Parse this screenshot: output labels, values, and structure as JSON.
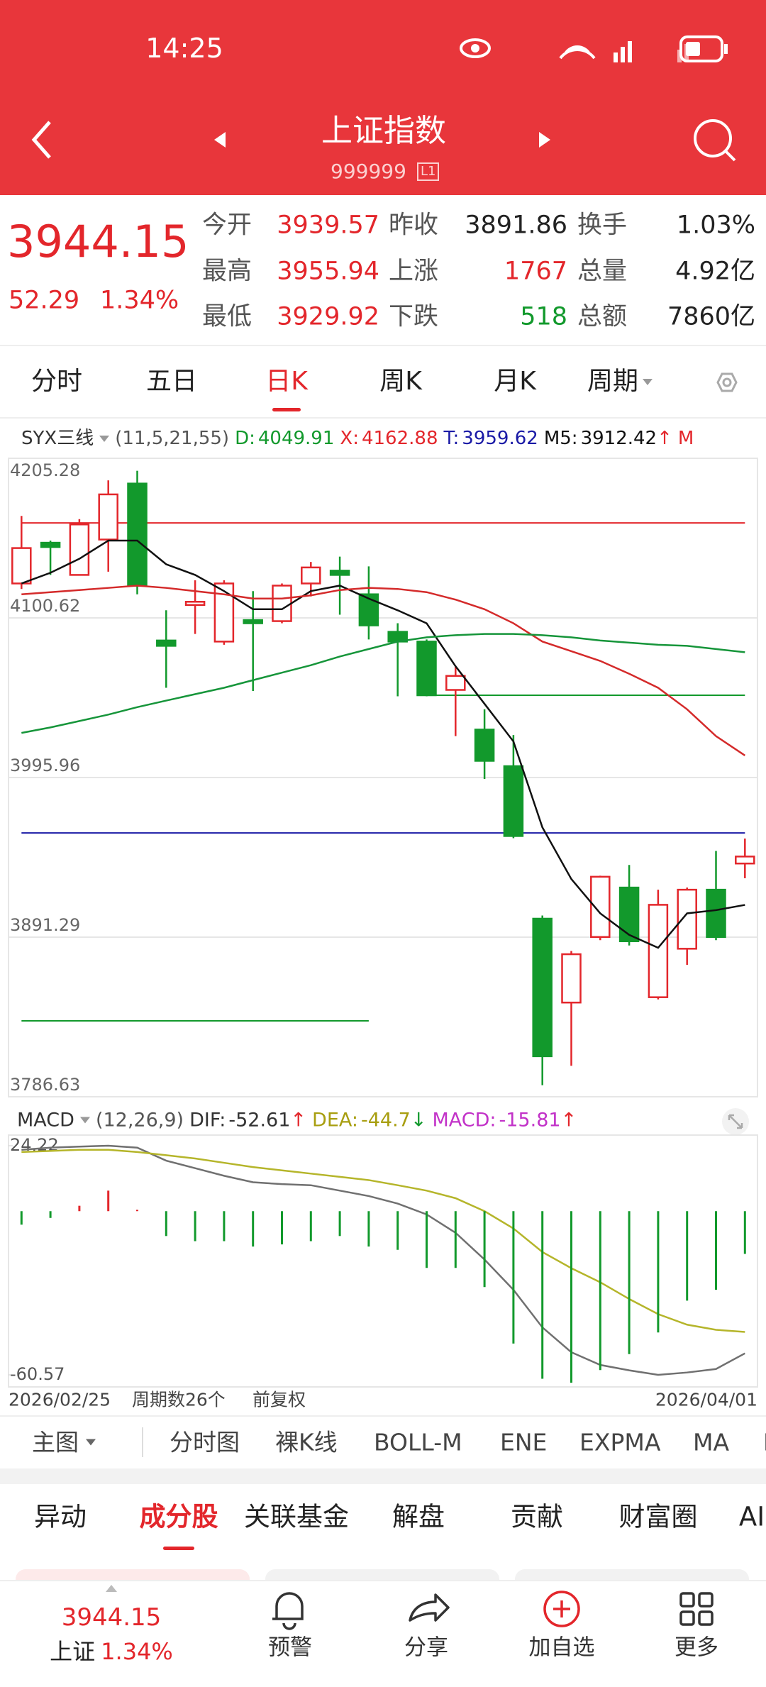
{
  "status_bar": {
    "time": "14:25"
  },
  "header": {
    "title": "上证指数",
    "code": "999999",
    "badge": "L1"
  },
  "colors": {
    "up": "#e3262b",
    "down": "#12992c",
    "flat": "#222222"
  },
  "quote": {
    "price": "3944.15",
    "change": "52.29",
    "change_pct": "1.34%",
    "tone": "up",
    "stats": [
      [
        {
          "label": "今开",
          "value": "3939.57",
          "tone": "up"
        },
        {
          "label": "昨收",
          "value": "3891.86",
          "tone": "flat"
        },
        {
          "label": "换手",
          "value": "1.03%",
          "tone": "flat"
        }
      ],
      [
        {
          "label": "最高",
          "value": "3955.94",
          "tone": "up"
        },
        {
          "label": "上涨",
          "value": "1767",
          "tone": "up"
        },
        {
          "label": "总量",
          "value": "4.92亿",
          "tone": "flat"
        }
      ],
      [
        {
          "label": "最低",
          "value": "3929.92",
          "tone": "up"
        },
        {
          "label": "下跌",
          "value": "518",
          "tone": "down"
        },
        {
          "label": "总额",
          "value": "7860亿",
          "tone": "flat"
        }
      ]
    ]
  },
  "period_tabs": {
    "items": [
      "分时",
      "五日",
      "日K",
      "周K",
      "月K",
      "周期"
    ],
    "active": 2
  },
  "chart_data": [
    {
      "type": "candlestick",
      "categories": [
        "2026/02/25",
        null,
        null,
        null,
        null,
        null,
        null,
        null,
        null,
        null,
        null,
        null,
        null,
        null,
        null,
        null,
        null,
        null,
        null,
        null,
        null,
        null,
        null,
        null,
        null,
        "2026/04/01"
      ],
      "open": [
        4123.2,
        4149.9,
        4128.8,
        4152.0,
        4188.7,
        4085.8,
        4109.1,
        4085.1,
        4099.2,
        4098.5,
        4123.2,
        4131.6,
        4116.1,
        4091.5,
        4085.1,
        4053.4,
        4027.4,
        4003.4,
        3903.4,
        3848.4,
        3891.4,
        3923.8,
        3851.9,
        3883.7,
        3922.4,
        3939.57
      ],
      "high": [
        4167.5,
        4151.3,
        4165.4,
        4190.8,
        4197.1,
        4105.6,
        4125.3,
        4125.3,
        4118.2,
        4123.2,
        4137.3,
        4140.8,
        4134.4,
        4097.1,
        4086.5,
        4068.9,
        4040.7,
        4023.8,
        3905.5,
        3882.2,
        3931.6,
        3938.6,
        3922.4,
        3923.8,
        3947.8,
        3955.94
      ],
      "low": [
        4119.6,
        4128.8,
        4128.8,
        4130.9,
        4116.1,
        4054.8,
        4090.1,
        4083.0,
        4052.7,
        4097.1,
        4114.7,
        4102.7,
        4086.5,
        4049.2,
        4049.2,
        4023.1,
        3995.0,
        3956.2,
        3794.2,
        3806.9,
        3889.3,
        3885.8,
        3850.5,
        3873.1,
        3889.3,
        3929.92
      ],
      "close": [
        4146.4,
        4147.1,
        4161.9,
        4181.6,
        4121.7,
        4082.3,
        4111.2,
        4123.2,
        4097.1,
        4121.8,
        4133.7,
        4128.8,
        4095.7,
        4085.1,
        4049.9,
        4062.6,
        4006.9,
        3957.6,
        3813.2,
        3880.1,
        3930.9,
        3888.6,
        3912.5,
        3922.4,
        3891.4,
        3944.15
      ],
      "ylim": [
        3786.63,
        4205.28
      ],
      "yticks": [
        4205.28,
        4100.62,
        3995.96,
        3891.29,
        3786.63
      ],
      "grid": true,
      "up_color": "#e3262b",
      "down_color": "#12992c",
      "indicator": {
        "name": "SYX三线",
        "params": "(11,5,21,55)",
        "items": [
          {
            "label": "D:",
            "value": 4049.91,
            "color": "#12992c",
            "from": 14
          },
          {
            "label": "X:",
            "value": 4162.88,
            "color": "#e3262b",
            "from": 0
          },
          {
            "label": "T:",
            "value": 3959.62,
            "color": "#1a1aa6",
            "from": 0
          }
        ],
        "tail": "M",
        "tail_color": "#e3262b"
      },
      "lines": [
        {
          "name": "M5:",
          "color": "#111111",
          "trend": "↑",
          "trend_color": "#e3262b",
          "values": [
            4123.2,
            4130.2,
            4139.4,
            4151.3,
            4151.3,
            4135.8,
            4128.8,
            4118.2,
            4106.3,
            4106.3,
            4118.2,
            4121.8,
            4113.3,
            4105.6,
            4097.1,
            4068.9,
            4044.3,
            4019.6,
            3963.3,
            3929.4,
            3906.9,
            3892.8,
            3884.3,
            3906.9,
            3909.0,
            3912.42
          ]
        },
        {
          "color": "#d42a2a",
          "values": [
            4116.1,
            4117.5,
            4118.9,
            4120.3,
            4121.8,
            4120.3,
            4118.2,
            4116.1,
            4113.3,
            4113.3,
            4115.4,
            4118.9,
            4120.3,
            4119.6,
            4117.5,
            4112.6,
            4106.3,
            4097.1,
            4085.1,
            4078.8,
            4072.4,
            4064.0,
            4054.8,
            4040.7,
            4023.1,
            4010.4
          ]
        },
        {
          "color": "#16953a",
          "values": [
            4025.2,
            4028.8,
            4033.0,
            4037.2,
            4042.1,
            4046.4,
            4050.6,
            4054.8,
            4059.8,
            4064.7,
            4069.6,
            4075.3,
            4080.2,
            4085.1,
            4087.9,
            4089.3,
            4090.1,
            4090.1,
            4089.3,
            4087.9,
            4085.8,
            4084.4,
            4083.0,
            4082.3,
            4080.2,
            4078.1
          ]
        }
      ],
      "levels": [
        {
          "value": 3836.4,
          "color": "#12992c",
          "from": 0,
          "to": 12
        }
      ]
    },
    {
      "type": "macd",
      "name": "MACD",
      "params": "(12,26,9)",
      "ylim": [
        -60.57,
        24.22
      ],
      "yticks": [
        24.22,
        -60.57
      ],
      "up_color": "#e3262b",
      "down_color": "#12992c",
      "series": [
        {
          "name": "DIF:",
          "color": "#707070",
          "legend_color": "#333333",
          "trend": "↑",
          "trend_color": "#e3262b",
          "values": [
            22.7,
            23.5,
            23.9,
            24.22,
            23.5,
            18.7,
            15.9,
            13.1,
            10.7,
            10.0,
            9.6,
            7.6,
            5.6,
            2.8,
            -1.2,
            -8.0,
            -17.9,
            -29.1,
            -43.0,
            -52.2,
            -56.9,
            -58.9,
            -60.57,
            -59.7,
            -58.4,
            -52.61
          ]
        },
        {
          "name": "DEA:",
          "color": "#b5b52a",
          "legend_color": "#a89e10",
          "trend": "↓",
          "trend_color": "#12992c",
          "values": [
            21.9,
            22.3,
            22.7,
            22.7,
            21.9,
            20.7,
            19.5,
            17.9,
            16.3,
            15.1,
            13.9,
            12.7,
            11.5,
            9.6,
            7.6,
            4.8,
            0,
            -6.4,
            -15.1,
            -21.1,
            -26.3,
            -32.5,
            -38.1,
            -42.0,
            -43.9,
            -44.7
          ]
        },
        {
          "name": "MACD:",
          "type": "bar",
          "color": "#c232c8",
          "legend_color": "#c232c8",
          "trend": "↑",
          "trend_color": "#e3262b",
          "values": [
            -5.0,
            -2.5,
            2.0,
            7.6,
            0.5,
            -9.2,
            -11.1,
            -11.1,
            -13.1,
            -12.3,
            -11.1,
            -9.2,
            -13.1,
            -14.3,
            -21.0,
            -21.0,
            -28.1,
            -49.0,
            -62.0,
            -63.5,
            -58.8,
            -52.9,
            -44.9,
            -33.1,
            -29.1,
            -15.81
          ]
        }
      ]
    }
  ],
  "chart_footer": {
    "count": "周期数26个",
    "adjust": "前复权"
  },
  "indicator_tabs": {
    "main": "主图",
    "items": [
      "分时图",
      "裸K线",
      "BOLL-M",
      "ENE",
      "EXPMA",
      "MA",
      "I"
    ]
  },
  "section_tabs": {
    "items": [
      "异动",
      "成分股",
      "关联基金",
      "解盘",
      "贡献",
      "财富圈",
      "AI"
    ],
    "active": 1
  },
  "bottom_nav": {
    "index_name": "上证",
    "items": [
      "预警",
      "分享",
      "加自选",
      "更多"
    ]
  }
}
